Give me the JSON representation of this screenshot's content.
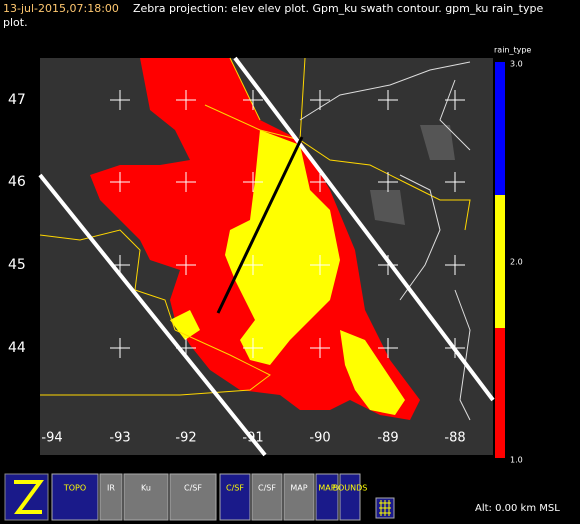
{
  "header": {
    "timestamp": "13-jul-2015,07:18:00",
    "description": "Zebra projection: elev elev  plot.  Gpm_ku swath contour.  gpm_ku rain_type",
    "description_cont": "plot."
  },
  "map": {
    "lat_labels": [
      47,
      46,
      45,
      44
    ],
    "lon_labels": [
      -94,
      -93,
      -92,
      -91,
      -90,
      -89,
      -88
    ]
  },
  "colorbar": {
    "title": "rain_type",
    "labels": [
      "3.0",
      "2.0",
      "1.0"
    ]
  },
  "toolbar": {
    "buttons": [
      "TOPO",
      "IR",
      "Ku",
      "C/SF",
      "C/SF",
      "C/SF",
      "MAP",
      "MAP",
      "BOUNDS"
    ]
  },
  "status": {
    "altitude": "Alt: 0.00 km MSL"
  }
}
